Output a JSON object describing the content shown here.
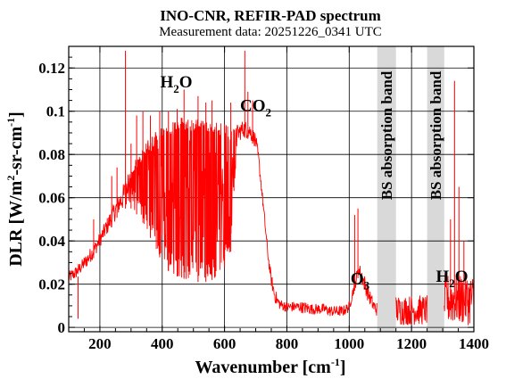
{
  "chart_data": {
    "type": "line",
    "title": "INO-CNR, REFIR-PAD spectrum",
    "subtitle": "Measurement data: 20251226_0341 UTC",
    "xlabel": {
      "main": "Wavenumber [cm",
      "sup": "-1",
      "end": "]"
    },
    "ylabel": {
      "a": "DLR [W/m",
      "sup1": "2",
      "b": "-sr-cm",
      "sup2": "-1",
      "c": "]"
    },
    "xlim": [
      100,
      1400
    ],
    "ylim": [
      -0.002,
      0.13
    ],
    "xticks": [
      200,
      400,
      600,
      800,
      1000,
      1200,
      1400
    ],
    "yticks": [
      0,
      0.02,
      0.04,
      0.06,
      0.08,
      0.1,
      0.12
    ],
    "ytick_labels": [
      "0",
      "0.02",
      "0.04",
      "0.06",
      "0.08",
      "0.1",
      "0.12"
    ],
    "grid": true,
    "line_color": "#ff0000",
    "bands": [
      {
        "label": "BS absorption band",
        "x_start": 1090,
        "x_end": 1150,
        "color": "#d9d9d9"
      },
      {
        "label": "BS absorption band",
        "x_start": 1250,
        "x_end": 1305,
        "color": "#d9d9d9"
      }
    ],
    "annotations": [
      {
        "base": "H",
        "sub": "2",
        "tail": "O",
        "x": 445,
        "y": 0.111
      },
      {
        "base": "CO",
        "sub": "2",
        "tail": "",
        "x": 700,
        "y": 0.1
      },
      {
        "base": "O",
        "sub": "3",
        "tail": "",
        "x": 1035,
        "y": 0.02
      },
      {
        "base": "H",
        "sub": "2",
        "tail": "O",
        "x": 1330,
        "y": 0.021
      }
    ],
    "envelope": {
      "x": [
        100,
        120,
        140,
        160,
        180,
        200,
        220,
        240,
        260,
        280,
        300,
        320,
        340,
        360,
        380,
        400,
        420,
        440,
        460,
        480,
        500,
        520,
        540,
        560,
        580,
        600,
        620,
        640,
        660,
        680,
        700,
        710,
        720,
        730,
        740,
        750,
        760,
        770,
        780,
        800,
        820,
        840,
        860,
        880,
        900,
        920,
        940,
        960,
        980,
        1000,
        1010,
        1020,
        1030,
        1040,
        1050,
        1060,
        1070,
        1080,
        1090
      ],
      "upper": [
        0.026,
        0.028,
        0.031,
        0.035,
        0.039,
        0.044,
        0.05,
        0.056,
        0.062,
        0.068,
        0.074,
        0.079,
        0.084,
        0.088,
        0.091,
        0.093,
        0.095,
        0.096,
        0.097,
        0.097,
        0.097,
        0.097,
        0.097,
        0.096,
        0.095,
        0.094,
        0.093,
        0.094,
        0.096,
        0.095,
        0.09,
        0.08,
        0.065,
        0.05,
        0.035,
        0.025,
        0.019,
        0.015,
        0.013,
        0.012,
        0.012,
        0.012,
        0.012,
        0.011,
        0.011,
        0.011,
        0.01,
        0.01,
        0.01,
        0.012,
        0.018,
        0.024,
        0.03,
        0.028,
        0.024,
        0.02,
        0.016,
        0.013,
        0.012
      ],
      "lower": [
        0.02,
        0.022,
        0.025,
        0.028,
        0.032,
        0.037,
        0.042,
        0.047,
        0.052,
        0.055,
        0.055,
        0.052,
        0.048,
        0.042,
        0.036,
        0.03,
        0.026,
        0.024,
        0.023,
        0.022,
        0.021,
        0.021,
        0.021,
        0.022,
        0.024,
        0.028,
        0.035,
        0.085,
        0.088,
        0.087,
        0.083,
        0.074,
        0.06,
        0.045,
        0.03,
        0.019,
        0.012,
        0.009,
        0.008,
        0.007,
        0.007,
        0.007,
        0.006,
        0.006,
        0.006,
        0.006,
        0.005,
        0.005,
        0.005,
        0.007,
        0.013,
        0.018,
        0.024,
        0.02,
        0.016,
        0.012,
        0.009,
        0.006,
        0.005
      ]
    },
    "gap_segment": {
      "x_start": 1150,
      "x_end": 1250,
      "level": 0.008,
      "spread": 0.007
    },
    "tail_segment": {
      "x_start": 1305,
      "x_end": 1400,
      "level": 0.013,
      "spread": 0.012
    },
    "spikes": [
      {
        "x": 130,
        "y": 0.004
      },
      {
        "x": 180,
        "y": 0.05
      },
      {
        "x": 238,
        "y": 0.07
      },
      {
        "x": 255,
        "y": 0.074
      },
      {
        "x": 282,
        "y": 0.128
      },
      {
        "x": 300,
        "y": 0.085
      },
      {
        "x": 318,
        "y": 0.098
      },
      {
        "x": 338,
        "y": 0.1
      },
      {
        "x": 362,
        "y": 0.098
      },
      {
        "x": 392,
        "y": 0.1
      },
      {
        "x": 420,
        "y": 0.1
      },
      {
        "x": 448,
        "y": 0.101
      },
      {
        "x": 470,
        "y": 0.11
      },
      {
        "x": 515,
        "y": 0.107
      },
      {
        "x": 540,
        "y": 0.104
      },
      {
        "x": 560,
        "y": 0.105
      },
      {
        "x": 600,
        "y": 0.094
      },
      {
        "x": 620,
        "y": 0.104
      },
      {
        "x": 665,
        "y": 0.128
      },
      {
        "x": 675,
        "y": 0.109
      },
      {
        "x": 690,
        "y": 0.105
      },
      {
        "x": 1018,
        "y": 0.052
      },
      {
        "x": 1028,
        "y": 0.055
      },
      {
        "x": 1325,
        "y": 0.05
      },
      {
        "x": 1338,
        "y": 0.114
      },
      {
        "x": 1352,
        "y": 0.065
      },
      {
        "x": 1368,
        "y": 0.04
      }
    ]
  }
}
